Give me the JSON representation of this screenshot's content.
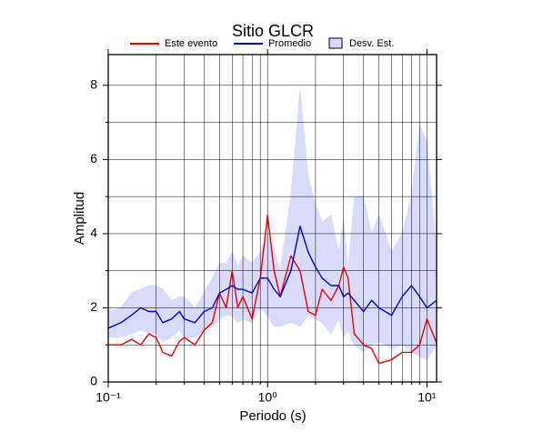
{
  "chart_data": {
    "type": "line",
    "title": "Sitio GLCR",
    "x_label": "Periodo (s)",
    "y_label": "Amplitud",
    "x_log": true,
    "grid": true,
    "xlim": [
      0.1,
      11.5
    ],
    "ylim": [
      0,
      8.83
    ],
    "xticks": [
      {
        "value": 0.1,
        "label": "10⁻¹"
      },
      {
        "value": 1,
        "label": "10⁰"
      },
      {
        "value": 10,
        "label": "10¹"
      }
    ],
    "xticks_minor": [
      0.2,
      0.3,
      0.4,
      0.5,
      0.6,
      0.7,
      0.8,
      0.9,
      2,
      3,
      4,
      5,
      6,
      7,
      8,
      9
    ],
    "yticks": [
      0,
      2,
      4,
      6,
      8
    ],
    "yticks_minor": [
      1,
      3,
      5,
      7
    ],
    "x": [
      0.1,
      0.12,
      0.14,
      0.16,
      0.18,
      0.2,
      0.22,
      0.25,
      0.28,
      0.3,
      0.35,
      0.4,
      0.45,
      0.5,
      0.55,
      0.6,
      0.65,
      0.7,
      0.8,
      0.9,
      1.0,
      1.1,
      1.2,
      1.4,
      1.6,
      1.8,
      2.0,
      2.2,
      2.5,
      2.8,
      3.0,
      3.2,
      3.5,
      4,
      4.5,
      5,
      6,
      7,
      8,
      9,
      10,
      11.5
    ],
    "series": [
      {
        "name": "Desv. Est.",
        "type": "band",
        "color": "#d8dcfa",
        "edge": "#000000",
        "upper": [
          1.9,
          2.0,
          2.4,
          2.5,
          2.6,
          2.6,
          2.5,
          2.2,
          2.3,
          2.3,
          2.0,
          2.4,
          2.8,
          3.2,
          3.2,
          3.5,
          3.1,
          3.4,
          3.2,
          3.5,
          4.0,
          3.6,
          3.0,
          5.0,
          7.9,
          5.5,
          4.8,
          4.3,
          4.5,
          3.5,
          4.4,
          3.0,
          5.0,
          5.0,
          4.0,
          4.5,
          3.5,
          4.0,
          5.0,
          6.9,
          6.5,
          3.5
        ],
        "lower": [
          1.2,
          1.2,
          1.3,
          1.4,
          1.3,
          1.3,
          1.1,
          1.2,
          1.4,
          1.2,
          1.2,
          1.4,
          1.5,
          1.7,
          1.8,
          1.8,
          1.6,
          1.7,
          1.6,
          2.0,
          1.8,
          1.5,
          1.5,
          1.6,
          1.5,
          1.8,
          1.7,
          1.6,
          1.3,
          1.7,
          1.2,
          1.4,
          1.0,
          0.8,
          1.0,
          1.1,
          0.9,
          1.0,
          0.8,
          0.7,
          0.6,
          1.0
        ]
      },
      {
        "name": "Este evento",
        "color": "#ee0000",
        "values": [
          1.0,
          1.0,
          1.15,
          1.0,
          1.3,
          1.2,
          0.8,
          0.7,
          1.1,
          1.2,
          1.0,
          1.4,
          1.6,
          2.4,
          2.0,
          3.0,
          2.0,
          2.3,
          1.7,
          2.8,
          4.5,
          3.0,
          2.3,
          3.4,
          3.0,
          1.9,
          1.8,
          2.5,
          2.2,
          2.6,
          3.1,
          2.8,
          1.3,
          1.0,
          0.9,
          0.5,
          0.6,
          0.8,
          0.8,
          1.0,
          1.7,
          1.05
        ]
      },
      {
        "name": "Promedio",
        "color": "#0000cc",
        "values": [
          1.45,
          1.6,
          1.8,
          2.0,
          1.9,
          1.9,
          1.6,
          1.7,
          1.9,
          1.7,
          1.6,
          1.9,
          2.0,
          2.4,
          2.5,
          2.6,
          2.5,
          2.5,
          2.4,
          2.8,
          2.8,
          2.5,
          2.3,
          3.0,
          4.2,
          3.5,
          3.1,
          2.8,
          2.6,
          2.6,
          2.3,
          2.4,
          2.2,
          1.9,
          2.2,
          2.0,
          1.8,
          2.3,
          2.6,
          2.3,
          2.0,
          2.2
        ]
      }
    ]
  }
}
